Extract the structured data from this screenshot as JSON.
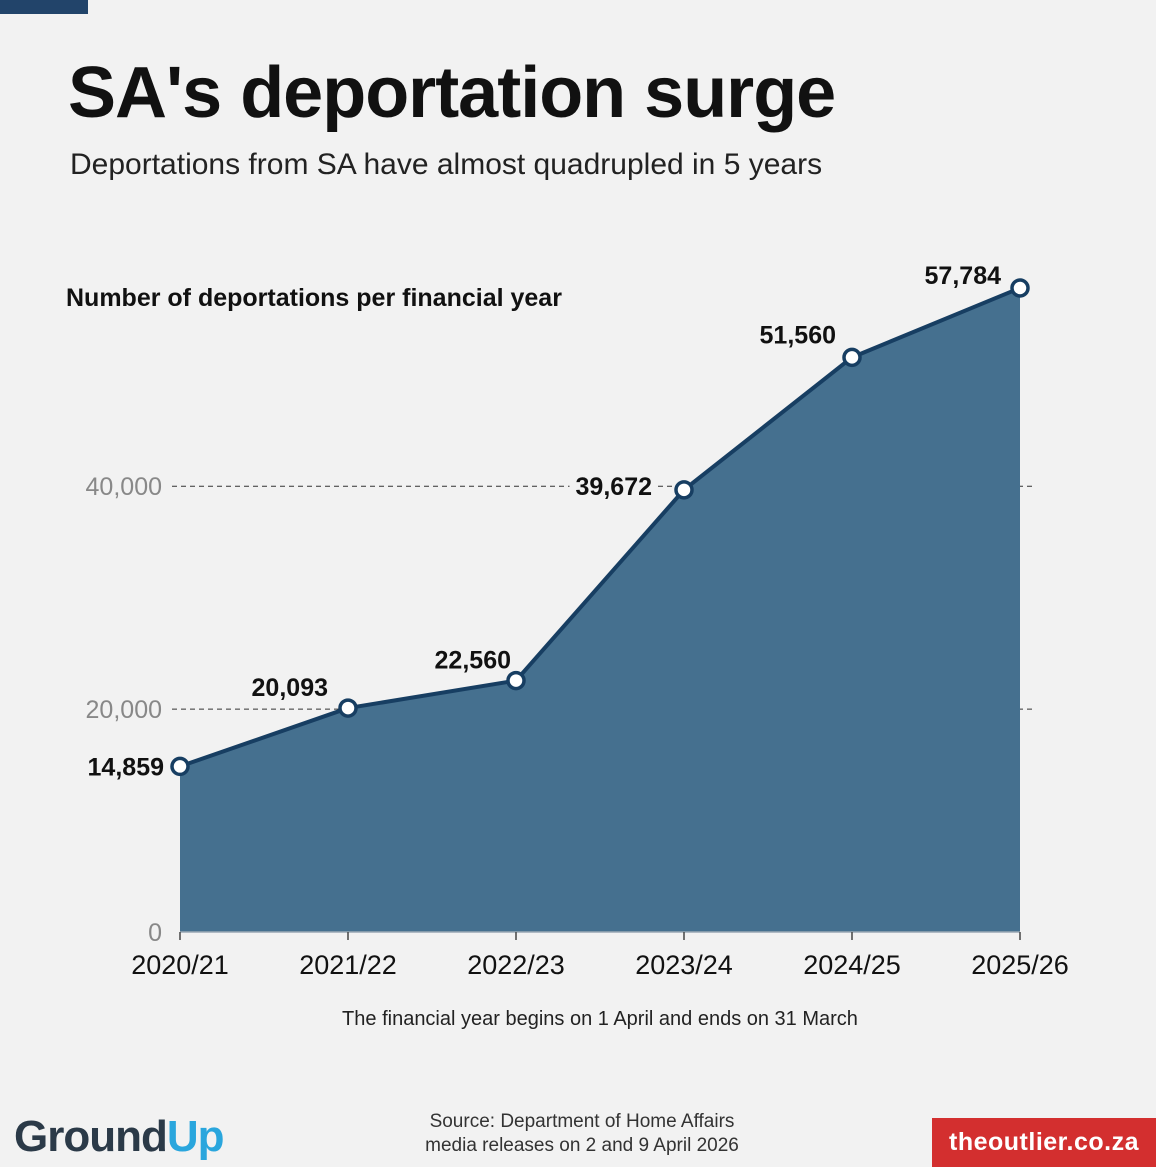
{
  "header": {
    "title": "SA's deportation surge",
    "subtitle": "Deportations from SA have almost quadrupled in 5 years"
  },
  "chart_data": {
    "type": "area",
    "title": "Number of deportations per financial year",
    "categories": [
      "2020/21",
      "2021/22",
      "2022/23",
      "2023/24",
      "2024/25",
      "2025/26"
    ],
    "series": [
      {
        "values": [
          14859,
          20093,
          22560,
          39672,
          51560,
          57784
        ]
      }
    ],
    "data_labels": [
      "14,859",
      "20,093",
      "22,560",
      "39,672",
      "51,560",
      "57,784"
    ],
    "y_ticks": [
      0,
      20000,
      40000
    ],
    "y_tick_labels": [
      "0",
      "20,000",
      "40,000"
    ],
    "ylim": [
      0,
      60000
    ],
    "grid": "dashed horizontal at 20,000 and 40,000",
    "colors": {
      "fill": "#45708f",
      "line": "#173e62",
      "marker_fill": "#ffffff"
    }
  },
  "footnote": "The financial year begins on 1 April and ends on 31 March",
  "footer": {
    "logo_ground": "Gr",
    "logo_o": "o",
    "logo_und": "und",
    "logo_up": "Up",
    "source_line1": "Source: Department of Home Affairs",
    "source_line2": "media releases on 2 and 9 April 2026",
    "badge": "theoutlier.co.za"
  }
}
